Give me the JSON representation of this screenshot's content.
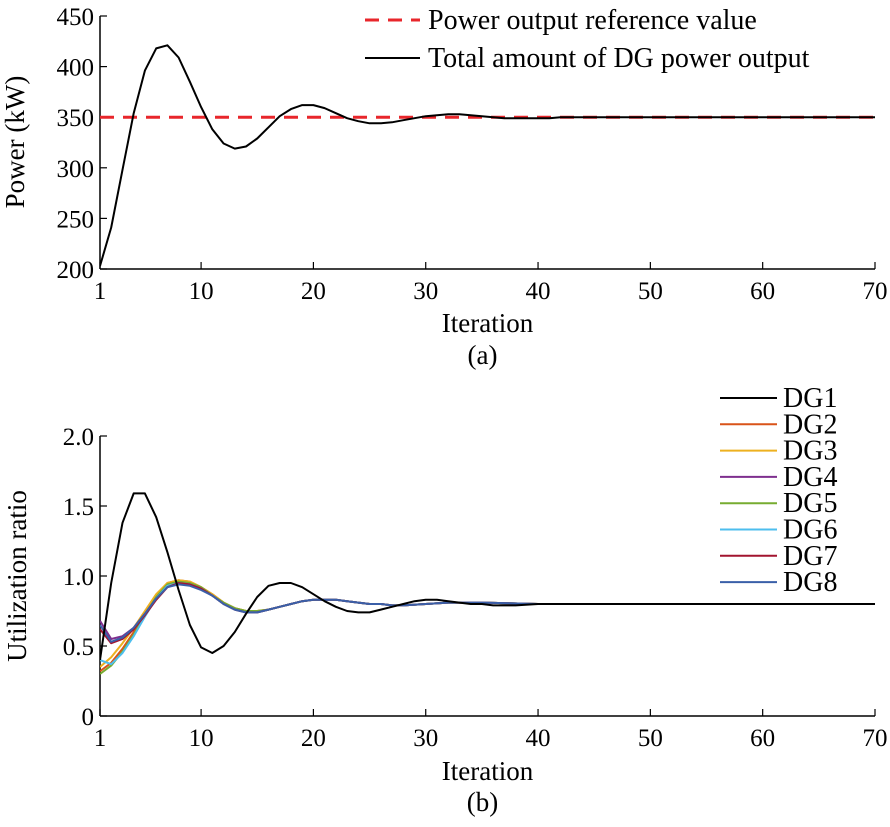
{
  "chart_data": [
    {
      "panel": "(a)",
      "type": "line",
      "xlabel": "Iteration",
      "ylabel": "Power (kW)",
      "xlim": [
        1,
        70
      ],
      "ylim": [
        200,
        450
      ],
      "xticks": [
        1,
        10,
        20,
        30,
        40,
        50,
        60,
        70
      ],
      "yticks": [
        200,
        250,
        300,
        350,
        400,
        450
      ],
      "legend_position": "top-right",
      "series": [
        {
          "name": "Power output reference value",
          "color": "#e8262b",
          "style": "dashed",
          "x": [
            1,
            70
          ],
          "y": [
            350,
            350
          ]
        },
        {
          "name": "Total amount of DG power output",
          "color": "#000000",
          "style": "solid",
          "x": [
            1,
            2,
            3,
            4,
            5,
            6,
            7,
            8,
            9,
            10,
            11,
            12,
            13,
            14,
            15,
            16,
            17,
            18,
            19,
            20,
            21,
            22,
            23,
            24,
            25,
            26,
            27,
            28,
            29,
            30,
            31,
            32,
            33,
            34,
            35,
            36,
            37,
            38,
            39,
            40,
            41,
            42,
            43,
            44,
            45,
            46,
            47,
            48,
            49,
            50,
            52,
            55,
            58,
            60,
            63,
            66,
            70
          ],
          "y": [
            203,
            241,
            298,
            354,
            396,
            418,
            421,
            409,
            385,
            360,
            338,
            324,
            319,
            321,
            329,
            340,
            351,
            358,
            362,
            362,
            359,
            354,
            349,
            346,
            344,
            344,
            345,
            347,
            349,
            351,
            352,
            353,
            353,
            352,
            351,
            350,
            349,
            349,
            349,
            349,
            349,
            350,
            350,
            350,
            350,
            350,
            350,
            350,
            350,
            350,
            350,
            350,
            350,
            350,
            350,
            350,
            350
          ]
        }
      ]
    },
    {
      "panel": "(b)",
      "type": "line",
      "xlabel": "Iteration",
      "ylabel": "Utilization ratio",
      "xlim": [
        1,
        70
      ],
      "ylim": [
        0,
        2.0
      ],
      "xticks": [
        1,
        10,
        20,
        30,
        40,
        50,
        60,
        70
      ],
      "ytick_labels": [
        "0",
        "0.5",
        "1.0",
        "1.5",
        "2.0"
      ],
      "yticks": [
        0,
        0.5,
        1.0,
        1.5,
        2.0
      ],
      "legend_position": "top-right",
      "series": [
        {
          "name": "DG1",
          "color": "#000000",
          "x": [
            1,
            2,
            3,
            4,
            5,
            6,
            7,
            8,
            9,
            10,
            11,
            12,
            13,
            14,
            15,
            16,
            17,
            18,
            19,
            20,
            21,
            22,
            23,
            24,
            25,
            26,
            27,
            28,
            29,
            30,
            31,
            32,
            33,
            34,
            35,
            36,
            37,
            38,
            40,
            45,
            50,
            55,
            60,
            65,
            70
          ],
          "y": [
            0.4,
            0.95,
            1.38,
            1.59,
            1.59,
            1.42,
            1.17,
            0.9,
            0.65,
            0.49,
            0.45,
            0.5,
            0.6,
            0.73,
            0.85,
            0.93,
            0.95,
            0.95,
            0.92,
            0.87,
            0.82,
            0.78,
            0.75,
            0.74,
            0.74,
            0.76,
            0.78,
            0.8,
            0.82,
            0.83,
            0.83,
            0.82,
            0.81,
            0.8,
            0.8,
            0.79,
            0.79,
            0.79,
            0.8,
            0.8,
            0.8,
            0.8,
            0.8,
            0.8,
            0.8
          ]
        },
        {
          "name": "DG2",
          "color": "#d95319",
          "x": [
            1,
            2,
            3,
            4,
            5,
            6,
            7,
            8,
            9,
            10,
            11,
            12,
            13,
            14,
            15,
            16,
            17,
            18,
            19,
            20,
            21,
            22,
            23,
            24,
            25,
            26,
            27,
            28,
            30,
            32,
            35,
            40,
            45,
            50,
            55,
            60,
            65,
            70
          ],
          "y": [
            0.32,
            0.38,
            0.48,
            0.6,
            0.73,
            0.86,
            0.95,
            0.97,
            0.96,
            0.92,
            0.87,
            0.81,
            0.77,
            0.75,
            0.75,
            0.76,
            0.78,
            0.8,
            0.82,
            0.83,
            0.83,
            0.83,
            0.82,
            0.81,
            0.8,
            0.8,
            0.79,
            0.79,
            0.8,
            0.81,
            0.81,
            0.8,
            0.8,
            0.8,
            0.8,
            0.8,
            0.8,
            0.8
          ]
        },
        {
          "name": "DG3",
          "color": "#edb120",
          "x": [
            1,
            2,
            3,
            4,
            5,
            6,
            7,
            8,
            9,
            10,
            11,
            12,
            13,
            14,
            15,
            16,
            17,
            18,
            19,
            20,
            21,
            22,
            23,
            24,
            25,
            26,
            27,
            28,
            30,
            32,
            35,
            40,
            45,
            50,
            55,
            60,
            65,
            70
          ],
          "y": [
            0.35,
            0.42,
            0.52,
            0.63,
            0.75,
            0.87,
            0.95,
            0.97,
            0.96,
            0.92,
            0.87,
            0.81,
            0.77,
            0.75,
            0.75,
            0.76,
            0.78,
            0.8,
            0.82,
            0.83,
            0.83,
            0.83,
            0.82,
            0.81,
            0.8,
            0.8,
            0.79,
            0.79,
            0.8,
            0.81,
            0.81,
            0.8,
            0.8,
            0.8,
            0.8,
            0.8,
            0.8,
            0.8
          ]
        },
        {
          "name": "DG4",
          "color": "#7e2f8e",
          "x": [
            1,
            2,
            3,
            4,
            5,
            6,
            7,
            8,
            9,
            10,
            11,
            12,
            13,
            14,
            15,
            16,
            17,
            18,
            19,
            20,
            21,
            22,
            23,
            24,
            25,
            26,
            27,
            28,
            30,
            32,
            35,
            40,
            45,
            50,
            55,
            60,
            65,
            70
          ],
          "y": [
            0.68,
            0.55,
            0.57,
            0.63,
            0.73,
            0.84,
            0.93,
            0.95,
            0.94,
            0.91,
            0.86,
            0.8,
            0.76,
            0.74,
            0.74,
            0.76,
            0.78,
            0.8,
            0.82,
            0.83,
            0.83,
            0.83,
            0.82,
            0.81,
            0.8,
            0.8,
            0.79,
            0.79,
            0.8,
            0.81,
            0.81,
            0.8,
            0.8,
            0.8,
            0.8,
            0.8,
            0.8,
            0.8
          ]
        },
        {
          "name": "DG5",
          "color": "#77ac30",
          "x": [
            1,
            2,
            3,
            4,
            5,
            6,
            7,
            8,
            9,
            10,
            11,
            12,
            13,
            14,
            15,
            16,
            17,
            18,
            19,
            20,
            21,
            22,
            23,
            24,
            25,
            26,
            27,
            28,
            30,
            32,
            35,
            40,
            45,
            50,
            55,
            60,
            65,
            70
          ],
          "y": [
            0.3,
            0.36,
            0.46,
            0.58,
            0.72,
            0.85,
            0.94,
            0.96,
            0.95,
            0.92,
            0.86,
            0.81,
            0.77,
            0.75,
            0.75,
            0.76,
            0.78,
            0.8,
            0.82,
            0.83,
            0.83,
            0.83,
            0.82,
            0.81,
            0.8,
            0.8,
            0.79,
            0.79,
            0.8,
            0.81,
            0.81,
            0.8,
            0.8,
            0.8,
            0.8,
            0.8,
            0.8,
            0.8
          ]
        },
        {
          "name": "DG6",
          "color": "#4dbeee",
          "x": [
            1,
            2,
            3,
            4,
            5,
            6,
            7,
            8,
            9,
            10,
            11,
            12,
            13,
            14,
            15,
            16,
            17,
            18,
            19,
            20,
            21,
            22,
            23,
            24,
            25,
            26,
            27,
            28,
            30,
            32,
            35,
            40,
            45,
            50,
            55,
            60,
            65,
            70
          ],
          "y": [
            0.4,
            0.37,
            0.45,
            0.57,
            0.71,
            0.84,
            0.93,
            0.95,
            0.94,
            0.91,
            0.86,
            0.8,
            0.76,
            0.74,
            0.74,
            0.76,
            0.78,
            0.8,
            0.82,
            0.83,
            0.83,
            0.83,
            0.82,
            0.81,
            0.8,
            0.8,
            0.79,
            0.79,
            0.8,
            0.81,
            0.81,
            0.8,
            0.8,
            0.8,
            0.8,
            0.8,
            0.8,
            0.8
          ]
        },
        {
          "name": "DG7",
          "color": "#a2142f",
          "x": [
            1,
            2,
            3,
            4,
            5,
            6,
            7,
            8,
            9,
            10,
            11,
            12,
            13,
            14,
            15,
            16,
            17,
            18,
            19,
            20,
            21,
            22,
            23,
            24,
            25,
            26,
            27,
            28,
            30,
            32,
            35,
            40,
            45,
            50,
            55,
            60,
            65,
            70
          ],
          "y": [
            0.62,
            0.52,
            0.55,
            0.62,
            0.72,
            0.83,
            0.92,
            0.95,
            0.94,
            0.91,
            0.86,
            0.8,
            0.76,
            0.74,
            0.74,
            0.76,
            0.78,
            0.8,
            0.82,
            0.83,
            0.83,
            0.83,
            0.82,
            0.81,
            0.8,
            0.8,
            0.79,
            0.79,
            0.8,
            0.81,
            0.81,
            0.8,
            0.8,
            0.8,
            0.8,
            0.8,
            0.8,
            0.8
          ]
        },
        {
          "name": "DG8",
          "color": "#3a5fa8",
          "x": [
            1,
            2,
            3,
            4,
            5,
            6,
            7,
            8,
            9,
            10,
            11,
            12,
            13,
            14,
            15,
            16,
            17,
            18,
            19,
            20,
            21,
            22,
            23,
            24,
            25,
            26,
            27,
            28,
            30,
            32,
            35,
            40,
            45,
            50,
            55,
            60,
            65,
            70
          ],
          "y": [
            0.65,
            0.53,
            0.56,
            0.63,
            0.73,
            0.84,
            0.92,
            0.94,
            0.93,
            0.9,
            0.86,
            0.8,
            0.76,
            0.74,
            0.74,
            0.76,
            0.78,
            0.8,
            0.82,
            0.83,
            0.83,
            0.83,
            0.82,
            0.81,
            0.8,
            0.8,
            0.79,
            0.79,
            0.8,
            0.81,
            0.81,
            0.8,
            0.8,
            0.8,
            0.8,
            0.8,
            0.8,
            0.8
          ]
        }
      ]
    }
  ]
}
